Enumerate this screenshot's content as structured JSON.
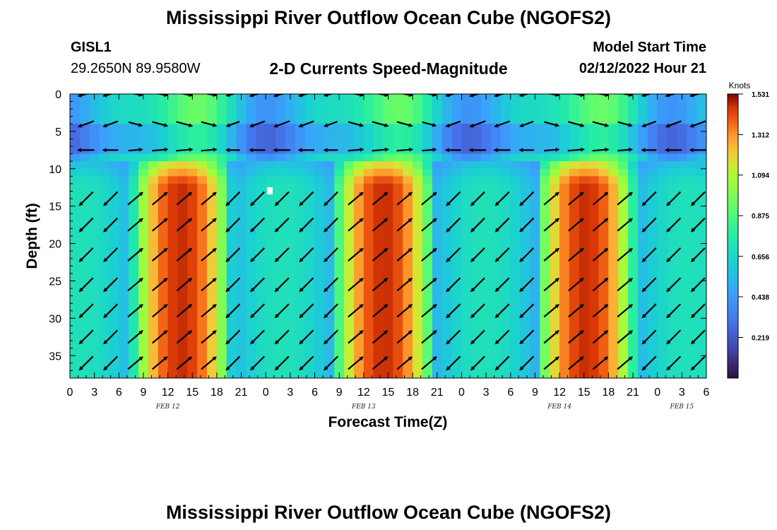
{
  "header": {
    "title": "Mississippi River Outflow Ocean Cube (NGOFS2)",
    "station": "GISL1",
    "coords": "29.2650N  89.9580W",
    "subtitle": "2-D Currents Speed-Magnitude",
    "model_start_label": "Model Start Time",
    "model_start_value": "02/12/2022 Hour 21"
  },
  "footer": {
    "title": "Mississippi River Outflow Ocean Cube (NGOFS2)"
  },
  "chart_data": {
    "type": "heatmap",
    "xlabel": "Forecast Time(Z)",
    "ylabel": "Depth (ft)",
    "x_tick_labels": [
      "0",
      "3",
      "6",
      "9",
      "12",
      "15",
      "18",
      "21",
      "0",
      "3",
      "6",
      "9",
      "12",
      "15",
      "18",
      "21",
      "0",
      "3",
      "6",
      "9",
      "12",
      "15",
      "18",
      "21",
      "0",
      "3",
      "6"
    ],
    "date_labels": [
      {
        "label": "FEB 12",
        "tick_index": 4
      },
      {
        "label": "FEB 13",
        "tick_index": 12
      },
      {
        "label": "FEB 14",
        "tick_index": 20
      },
      {
        "label": "FEB 15",
        "tick_index": 25
      }
    ],
    "x_range_hours": [
      0,
      78
    ],
    "y_ticks": [
      0,
      5,
      10,
      15,
      20,
      25,
      30,
      35
    ],
    "ylim": [
      0,
      38
    ],
    "colorbar": {
      "title": "Knots",
      "ticks": [
        "1.531",
        "1.312",
        "1.094",
        "0.875",
        "0.656",
        "0.438",
        "0.219"
      ],
      "range": [
        0,
        1.531
      ]
    },
    "arrow_depths_ft": [
      0,
      4,
      7.5,
      14,
      17.5,
      21.5,
      25.5,
      29,
      32.5,
      36
    ],
    "arrow_interval_hours": 3
  }
}
